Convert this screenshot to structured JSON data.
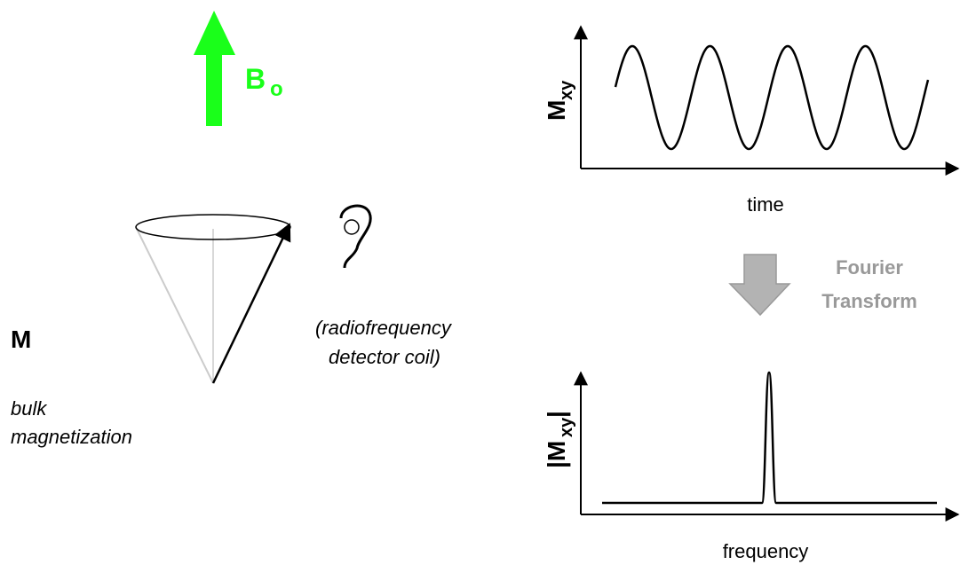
{
  "field": {
    "symbol": "B",
    "subscript": "o"
  },
  "magnetization": {
    "symbol": "M",
    "caption": [
      "bulk",
      "magnetization"
    ]
  },
  "coil": {
    "caption": [
      "(radiofrequency",
      "detector coil)"
    ]
  },
  "time_plot": {
    "y_label": {
      "symbol": "M",
      "subscript": "xy"
    },
    "x_label": "time"
  },
  "transform": {
    "label": [
      "Fourier",
      "Transform"
    ]
  },
  "frequency_plot": {
    "y_label": {
      "open": "|M",
      "subscript": "xy",
      "close": "|"
    },
    "x_label": "frequency"
  }
}
